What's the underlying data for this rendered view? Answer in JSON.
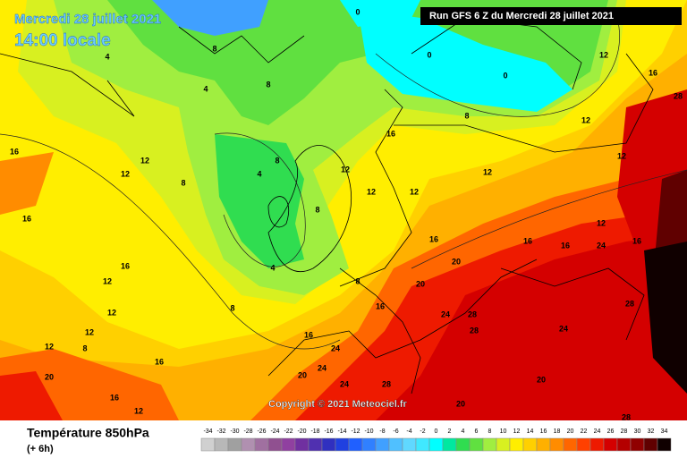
{
  "header": {
    "date": "Mercredi 28 juillet 2021",
    "time": "14:00 locale",
    "run": "Run GFS 6 Z du Mercredi 28 juillet 2021"
  },
  "copyright": "Copyright © 2021 Meteociel.fr",
  "legend": {
    "title": "Température 850hPa",
    "step": "(+ 6h)",
    "scale": [
      {
        "value": -34,
        "color": "#d0d0d0"
      },
      {
        "value": -32,
        "color": "#b8b8b8"
      },
      {
        "value": -30,
        "color": "#a0a0a0"
      },
      {
        "value": -28,
        "color": "#b090b0"
      },
      {
        "value": -26,
        "color": "#a070a0"
      },
      {
        "value": -24,
        "color": "#905090"
      },
      {
        "value": -22,
        "color": "#9040a0"
      },
      {
        "value": -20,
        "color": "#7030a0"
      },
      {
        "value": -18,
        "color": "#5030b0"
      },
      {
        "value": -16,
        "color": "#3030c0"
      },
      {
        "value": -14,
        "color": "#2040e0"
      },
      {
        "value": -12,
        "color": "#2060ff"
      },
      {
        "value": -10,
        "color": "#3080ff"
      },
      {
        "value": -8,
        "color": "#40a0ff"
      },
      {
        "value": -6,
        "color": "#50c0ff"
      },
      {
        "value": -4,
        "color": "#60d8ff"
      },
      {
        "value": -2,
        "color": "#40e8ff"
      },
      {
        "value": 0,
        "color": "#00ffff"
      },
      {
        "value": 2,
        "color": "#00e8a0"
      },
      {
        "value": 4,
        "color": "#30dd50"
      },
      {
        "value": 6,
        "color": "#60e040"
      },
      {
        "value": 8,
        "color": "#a0ee40"
      },
      {
        "value": 10,
        "color": "#d8f020"
      },
      {
        "value": 12,
        "color": "#ffee00"
      },
      {
        "value": 14,
        "color": "#ffd000"
      },
      {
        "value": 16,
        "color": "#ffb000"
      },
      {
        "value": 18,
        "color": "#ff8c00"
      },
      {
        "value": 20,
        "color": "#ff6600"
      },
      {
        "value": 22,
        "color": "#ff4000"
      },
      {
        "value": 24,
        "color": "#ee1a00"
      },
      {
        "value": 26,
        "color": "#d40000"
      },
      {
        "value": 28,
        "color": "#b40000"
      },
      {
        "value": 30,
        "color": "#900000"
      },
      {
        "value": 32,
        "color": "#600000"
      },
      {
        "value": 34,
        "color": "#100000"
      }
    ]
  },
  "contour_labels": [
    4,
    8,
    8,
    4,
    4,
    8,
    8,
    4,
    8,
    8,
    8,
    12,
    12,
    16,
    16,
    16,
    12,
    12,
    12,
    12,
    8,
    16,
    20,
    16,
    12,
    12,
    12,
    12,
    16,
    12,
    16,
    20,
    20,
    16,
    24,
    28,
    28,
    16,
    24,
    24,
    20,
    28,
    24,
    20,
    20,
    24,
    12,
    16,
    28,
    16,
    28,
    12,
    12,
    0,
    0,
    0,
    12,
    24,
    28,
    16,
    16,
    8
  ]
}
